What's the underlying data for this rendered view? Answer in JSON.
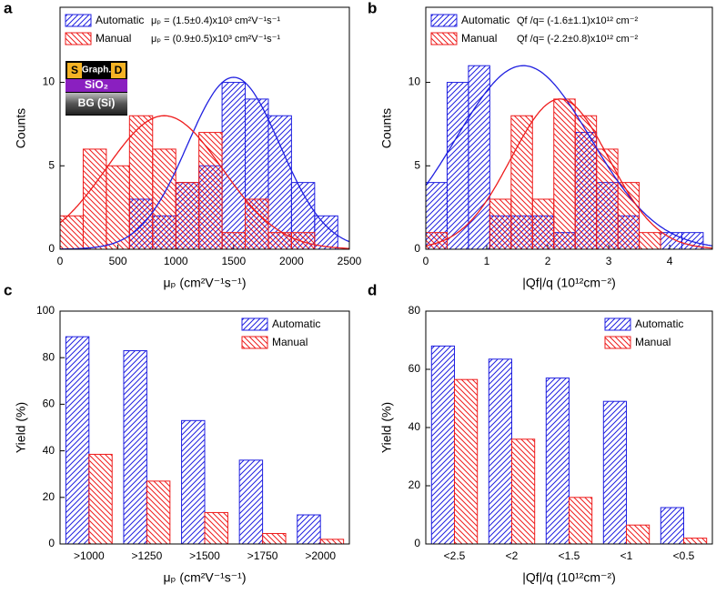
{
  "chart_data": [
    {
      "type": "histogram",
      "panel_label": "a",
      "x_label": "μₚ (cm²V⁻¹s⁻¹)",
      "y_label": "Counts",
      "bins": [
        0,
        200,
        400,
        600,
        800,
        1000,
        1200,
        1400,
        1600,
        1800,
        2000,
        2200,
        2400
      ],
      "series": [
        {
          "name": "Automatic",
          "color": "#2020e0",
          "hatch": "/",
          "fit_label": "μₚ = (1.5±0.4)x10³ cm²V⁻¹s⁻¹",
          "values": [
            0,
            0,
            0,
            3,
            2,
            4,
            5,
            10,
            9,
            8,
            4,
            2
          ],
          "fit": {
            "mean": 1500,
            "sd": 400,
            "peak": 10.3
          }
        },
        {
          "name": "Manual",
          "color": "#ee1c1c",
          "hatch": "\\",
          "fit_label": "μₚ = (0.9±0.5)x10³ cm²V⁻¹s⁻¹",
          "values": [
            2,
            6,
            5,
            8,
            6,
            4,
            7,
            1,
            3,
            1,
            1,
            0
          ],
          "fit": {
            "mean": 900,
            "sd": 500,
            "peak": 8
          }
        }
      ],
      "xlim": [
        0,
        2500
      ],
      "xticks": [
        0,
        500,
        1000,
        1500,
        2000,
        2500
      ],
      "ylim": [
        0,
        14.5
      ],
      "yticks": [
        0,
        5,
        10
      ],
      "legend": "upper left",
      "inset": [
        "S",
        "Graph.",
        "D",
        "SiO₂",
        "BG (Si)"
      ]
    },
    {
      "type": "histogram",
      "panel_label": "b",
      "x_label": "|Qf|/q (10¹²cm⁻²)",
      "y_label": "Counts",
      "bins": [
        0,
        0.35,
        0.7,
        1.05,
        1.4,
        1.75,
        2.1,
        2.45,
        2.8,
        3.15,
        3.5,
        3.85,
        4.2,
        4.55
      ],
      "series": [
        {
          "name": "Automatic",
          "color": "#2020e0",
          "hatch": "/",
          "fit_label": "Qf /q= (-1.6±1.1)x10¹² cm⁻²",
          "values": [
            4,
            10,
            11,
            2,
            2,
            2,
            1,
            7,
            4,
            2,
            0,
            1,
            1
          ],
          "fit": {
            "mean": 1.6,
            "sd": 1.1,
            "peak": 11
          }
        },
        {
          "name": "Manual",
          "color": "#ee1c1c",
          "hatch": "\\",
          "fit_label": "Qf /q= (-2.2±0.8)x10¹² cm⁻²",
          "values": [
            1,
            0,
            0,
            3,
            8,
            3,
            9,
            8,
            6,
            4,
            1,
            0,
            0
          ],
          "fit": {
            "mean": 2.2,
            "sd": 0.8,
            "peak": 9
          }
        }
      ],
      "xlim": [
        0,
        4.7
      ],
      "xticks": [
        0,
        1,
        2,
        3,
        4
      ],
      "ylim": [
        0,
        14.5
      ],
      "yticks": [
        0,
        5,
        10
      ],
      "legend": "upper left"
    },
    {
      "type": "bar",
      "panel_label": "c",
      "x_label": "μₚ (cm²V⁻¹s⁻¹)",
      "y_label": "Yield (%)",
      "categories": [
        ">1000",
        ">1250",
        ">1500",
        ">1750",
        ">2000"
      ],
      "series": [
        {
          "name": "Automatic",
          "color": "#2020e0",
          "hatch": "/",
          "values": [
            89,
            83,
            53,
            36,
            12.5
          ]
        },
        {
          "name": "Manual",
          "color": "#ee1c1c",
          "hatch": "\\",
          "values": [
            38.5,
            27,
            13.5,
            4.5,
            2
          ]
        }
      ],
      "ylim": [
        0,
        100
      ],
      "yticks": [
        0,
        20,
        40,
        60,
        80,
        100
      ],
      "legend": "upper right"
    },
    {
      "type": "bar",
      "panel_label": "d",
      "x_label": "|Qf|/q (10¹²cm⁻²)",
      "y_label": "Yield (%)",
      "categories": [
        "<2.5",
        "<2",
        "<1.5",
        "<1",
        "<0.5"
      ],
      "series": [
        {
          "name": "Automatic",
          "color": "#2020e0",
          "hatch": "/",
          "values": [
            68,
            63.5,
            57,
            49,
            12.5
          ]
        },
        {
          "name": "Manual",
          "color": "#ee1c1c",
          "hatch": "\\",
          "values": [
            56.5,
            36,
            16,
            6.5,
            2
          ]
        }
      ],
      "ylim": [
        0,
        80
      ],
      "yticks": [
        0,
        20,
        40,
        60,
        80
      ],
      "legend": "upper right"
    }
  ]
}
